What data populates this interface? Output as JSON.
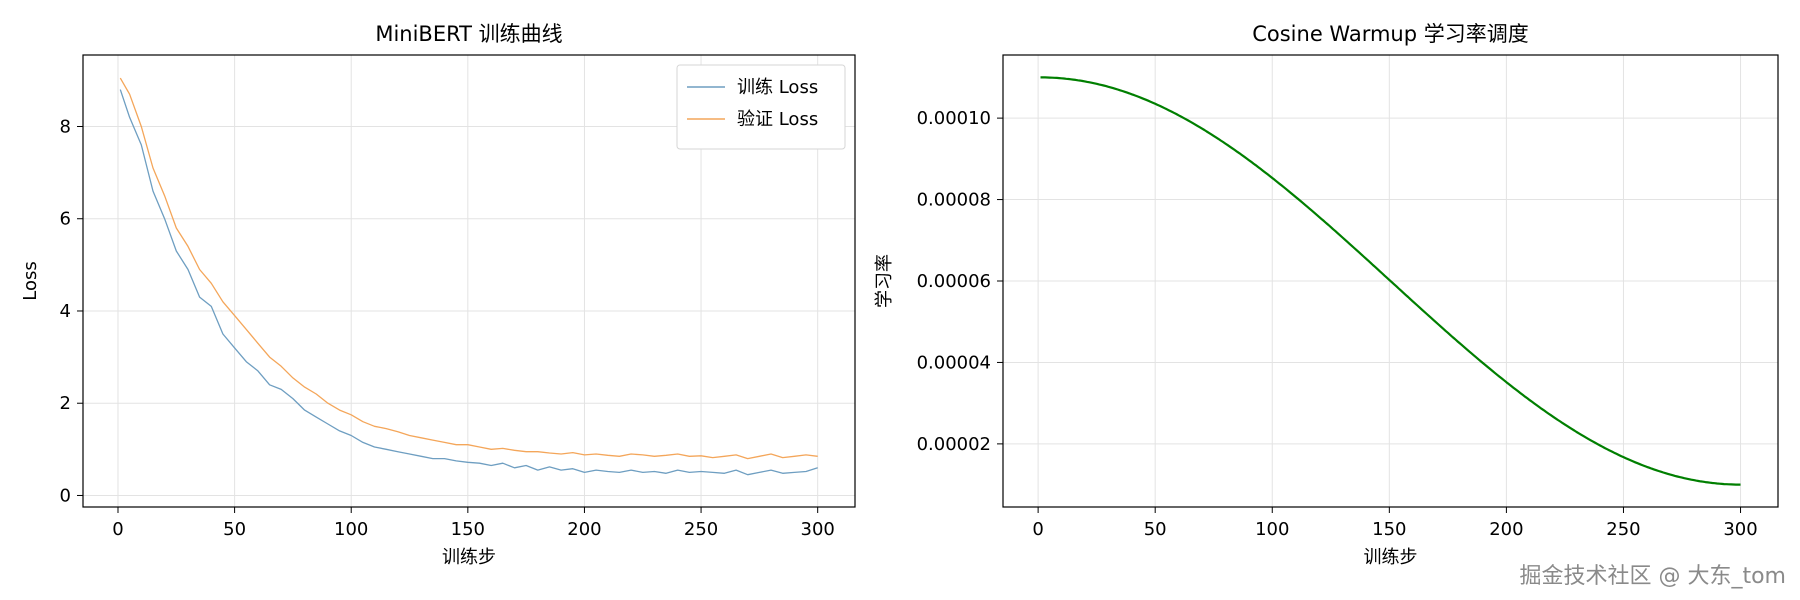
{
  "watermark": "掘金技术社区 @ 大东_tom",
  "chart_data": [
    {
      "type": "line",
      "title": "MiniBERT 训练曲线",
      "xlabel": "训练步",
      "ylabel": "Loss",
      "xlim": [
        -15,
        316
      ],
      "ylim": [
        -0.25,
        9.55
      ],
      "xticks": [
        0,
        50,
        100,
        150,
        200,
        250,
        300
      ],
      "yticks": [
        0,
        2,
        4,
        6,
        8
      ],
      "grid": true,
      "legend": "top-right",
      "series": [
        {
          "name": "训练 Loss",
          "color": "#6e9ec1",
          "x": [
            1,
            5,
            10,
            15,
            20,
            25,
            30,
            35,
            40,
            45,
            50,
            55,
            60,
            65,
            70,
            75,
            80,
            85,
            90,
            95,
            100,
            105,
            110,
            115,
            120,
            125,
            130,
            135,
            140,
            145,
            150,
            155,
            160,
            165,
            170,
            175,
            180,
            185,
            190,
            195,
            200,
            205,
            210,
            215,
            220,
            225,
            230,
            235,
            240,
            245,
            250,
            255,
            260,
            265,
            270,
            275,
            280,
            285,
            290,
            295,
            300
          ],
          "y": [
            8.8,
            8.2,
            7.6,
            6.6,
            6.0,
            5.3,
            4.9,
            4.3,
            4.1,
            3.5,
            3.2,
            2.9,
            2.7,
            2.4,
            2.3,
            2.1,
            1.85,
            1.7,
            1.55,
            1.4,
            1.3,
            1.15,
            1.05,
            1.0,
            0.95,
            0.9,
            0.85,
            0.8,
            0.8,
            0.75,
            0.72,
            0.7,
            0.65,
            0.7,
            0.6,
            0.65,
            0.55,
            0.62,
            0.55,
            0.58,
            0.5,
            0.55,
            0.52,
            0.5,
            0.55,
            0.5,
            0.52,
            0.48,
            0.55,
            0.5,
            0.52,
            0.5,
            0.48,
            0.55,
            0.45,
            0.5,
            0.55,
            0.48,
            0.5,
            0.52,
            0.6
          ]
        },
        {
          "name": "验证 Loss",
          "color": "#f4a65a",
          "x": [
            1,
            5,
            10,
            15,
            20,
            25,
            30,
            35,
            40,
            45,
            50,
            55,
            60,
            65,
            70,
            75,
            80,
            85,
            90,
            95,
            100,
            105,
            110,
            115,
            120,
            125,
            130,
            135,
            140,
            145,
            150,
            155,
            160,
            165,
            170,
            175,
            180,
            185,
            190,
            195,
            200,
            205,
            210,
            215,
            220,
            225,
            230,
            235,
            240,
            245,
            250,
            255,
            260,
            265,
            270,
            275,
            280,
            285,
            290,
            295,
            300
          ],
          "y": [
            9.05,
            8.7,
            8.0,
            7.1,
            6.5,
            5.8,
            5.4,
            4.9,
            4.6,
            4.2,
            3.9,
            3.6,
            3.3,
            3.0,
            2.8,
            2.55,
            2.35,
            2.2,
            2.0,
            1.85,
            1.75,
            1.6,
            1.5,
            1.45,
            1.38,
            1.3,
            1.25,
            1.2,
            1.15,
            1.1,
            1.1,
            1.05,
            1.0,
            1.02,
            0.98,
            0.95,
            0.95,
            0.92,
            0.9,
            0.93,
            0.88,
            0.9,
            0.87,
            0.85,
            0.9,
            0.88,
            0.85,
            0.87,
            0.9,
            0.85,
            0.86,
            0.82,
            0.85,
            0.88,
            0.8,
            0.85,
            0.9,
            0.82,
            0.85,
            0.88,
            0.85
          ]
        }
      ]
    },
    {
      "type": "line",
      "title": "Cosine Warmup 学习率调度",
      "xlabel": "训练步",
      "ylabel": "学习率",
      "xlim": [
        -15,
        316
      ],
      "ylim": [
        4.5e-06,
        0.0001155
      ],
      "xticks": [
        0,
        50,
        100,
        150,
        200,
        250,
        300
      ],
      "yticks": [
        2e-05,
        4e-05,
        6e-05,
        8e-05,
        0.0001
      ],
      "ytick_labels": [
        "0.00002",
        "0.00004",
        "0.00006",
        "0.00008",
        "0.00010"
      ],
      "grid": true,
      "series": [
        {
          "color": "#007f00",
          "function": "cosine",
          "x_range": [
            1,
            300
          ],
          "lr_max": 0.00011,
          "lr_min": 1e-05
        }
      ]
    }
  ]
}
